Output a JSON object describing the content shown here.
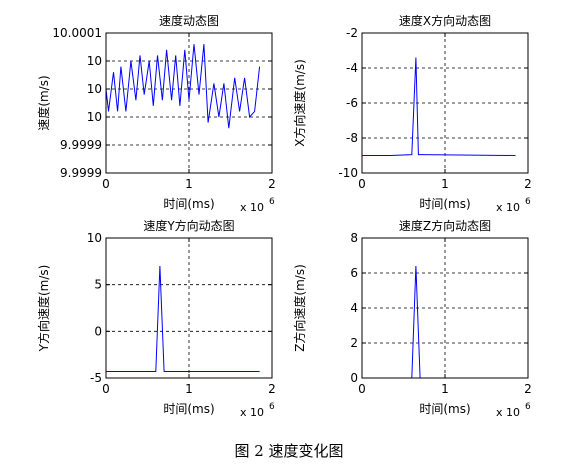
{
  "figure_caption": "图 2  速度变化图",
  "chart_data": [
    {
      "type": "line",
      "title": "速度动态图",
      "xlabel": "时间(ms)",
      "ylabel": "速度(m/s)",
      "x_multiplier": "x 10",
      "x_multiplier_exp": "6",
      "xlim": [
        0,
        2
      ],
      "ylim": [
        9.99985,
        10.0001
      ],
      "xticks": [
        0,
        1,
        2
      ],
      "xtick_labels": [
        "0",
        "1",
        "2"
      ],
      "yticks": [
        9.99985,
        9.9999,
        9.99995,
        10.0,
        10.00005,
        10.0001
      ],
      "ytick_labels": [
        "9.9999",
        "9.9999",
        "10",
        "10",
        "10",
        "10.0001"
      ],
      "grid": true,
      "series": [
        {
          "color": "#0000ff",
          "x": [
            0,
            0.03,
            0.09,
            0.14,
            0.18,
            0.24,
            0.3,
            0.36,
            0.41,
            0.46,
            0.52,
            0.57,
            0.62,
            0.68,
            0.73,
            0.79,
            0.84,
            0.89,
            0.95,
            1.0,
            1.06,
            1.12,
            1.18,
            1.23,
            1.3,
            1.36,
            1.42,
            1.48,
            1.55,
            1.61,
            1.67,
            1.73,
            1.79,
            1.85
          ],
          "y": [
            10.0,
            9.99996,
            10.00003,
            9.99996,
            10.00004,
            9.99996,
            10.00005,
            9.99998,
            10.00006,
            9.99999,
            10.00005,
            9.99997,
            10.00006,
            9.99998,
            10.00007,
            9.99998,
            10.00006,
            9.99997,
            10.00007,
            9.99998,
            10.00008,
            9.99999,
            10.00008,
            9.99994,
            10.00001,
            9.99995,
            10.00001,
            9.99993,
            10.00002,
            9.99996,
            10.00002,
            9.99995,
            9.99996,
            10.00004
          ]
        }
      ]
    },
    {
      "type": "line",
      "title": "速度X方向动态图",
      "xlabel": "时间(ms)",
      "ylabel": "X方向速度(m/s)",
      "x_multiplier": "x 10",
      "x_multiplier_exp": "6",
      "xlim": [
        0,
        2
      ],
      "ylim": [
        -10,
        -2
      ],
      "xticks": [
        0,
        1,
        2
      ],
      "xtick_labels": [
        "0",
        "1",
        "2"
      ],
      "yticks": [
        -10,
        -8,
        -6,
        -4,
        -2
      ],
      "ytick_labels": [
        "-10",
        "-8",
        "-6",
        "-4",
        "-2"
      ],
      "grid": true,
      "series": [
        {
          "color": "#0000ff",
          "x": [
            0,
            0.35,
            0.6,
            0.65,
            0.68,
            0.71,
            1.85
          ],
          "y": [
            -9.0,
            -9.0,
            -8.95,
            -3.4,
            -8.95,
            -8.95,
            -9.0
          ]
        }
      ]
    },
    {
      "type": "line",
      "title": "速度Y方向动态图",
      "xlabel": "时间(ms)",
      "ylabel": "Y方向速度(m/s)",
      "x_multiplier": "x 10",
      "x_multiplier_exp": "6",
      "xlim": [
        0,
        2
      ],
      "ylim": [
        -5,
        10
      ],
      "xticks": [
        0,
        1,
        2
      ],
      "xtick_labels": [
        "0",
        "1",
        "2"
      ],
      "yticks": [
        -5,
        0,
        5,
        10
      ],
      "ytick_labels": [
        "-5",
        "0",
        "5",
        "10"
      ],
      "grid": true,
      "series": [
        {
          "color": "#0000ff",
          "x": [
            0,
            0.6,
            0.65,
            0.7,
            1.85
          ],
          "y": [
            -4.3,
            -4.3,
            7.0,
            -4.3,
            -4.3
          ]
        }
      ]
    },
    {
      "type": "line",
      "title": "速度Z方向动态图",
      "xlabel": "时间(ms)",
      "ylabel": "Z方向速度(m/s)",
      "x_multiplier": "x 10",
      "x_multiplier_exp": "6",
      "xlim": [
        0,
        2
      ],
      "ylim": [
        0,
        8
      ],
      "xticks": [
        0,
        1,
        2
      ],
      "xtick_labels": [
        "0",
        "1",
        "2"
      ],
      "yticks": [
        0,
        2,
        4,
        6,
        8
      ],
      "ytick_labels": [
        "0",
        "2",
        "4",
        "6",
        "8"
      ],
      "grid": true,
      "series": [
        {
          "color": "#0000ff",
          "x": [
            0,
            0.6,
            0.65,
            0.7,
            1.85
          ],
          "y": [
            0,
            0,
            6.4,
            0,
            0
          ]
        }
      ]
    }
  ]
}
